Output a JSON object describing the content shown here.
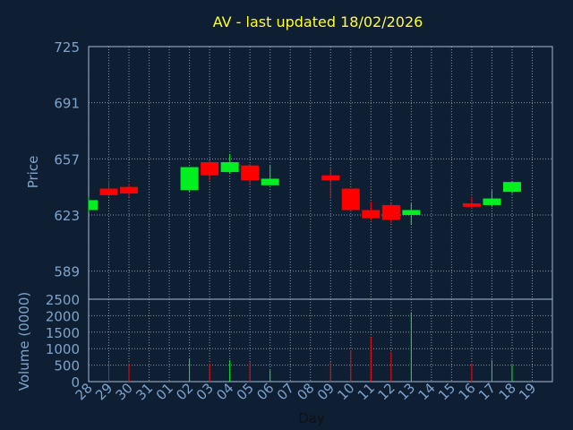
{
  "colors": {
    "background": "#0e1f33",
    "panel": "#0e1f33",
    "axis_text": "#7fa3cc",
    "title": "#ffff33",
    "up": "#00ee22",
    "down": "#ff0000",
    "grid": "#c8c8c8"
  },
  "chart_data": {
    "type": "candlestick",
    "title": "AV - last updated 18/02/2026",
    "xlabel": "Day",
    "ylabel_price": "Price",
    "ylabel_volume": "Volume (0000)",
    "price_ylim": [
      572,
      725
    ],
    "price_ticks": [
      "725",
      "691",
      "657",
      "623",
      "589"
    ],
    "volume_ylim": [
      0,
      2500
    ],
    "volume_ticks": [
      "2500",
      "2000",
      "1500",
      "1000",
      "500",
      "0"
    ],
    "x_ticks": [
      "28",
      "29",
      "30",
      "31",
      "01",
      "02",
      "03",
      "04",
      "05",
      "06",
      "07",
      "08",
      "09",
      "10",
      "11",
      "12",
      "13",
      "14",
      "15",
      "16",
      "17",
      "18",
      "19"
    ],
    "grid": true,
    "candles": [
      {
        "day": "28",
        "open": 626,
        "high": 634,
        "low": 625,
        "close": 632,
        "volume": 0
      },
      {
        "day": "29",
        "open": 639,
        "high": 644,
        "low": 634,
        "close": 635,
        "volume": 600
      },
      {
        "day": "30",
        "open": 640,
        "high": 642,
        "low": 634,
        "close": 636,
        "volume": 550
      },
      {
        "day": "02",
        "open": 638,
        "high": 652,
        "low": 637,
        "close": 652,
        "volume": 700
      },
      {
        "day": "03",
        "open": 655,
        "high": 656,
        "low": 644,
        "close": 647,
        "volume": 550
      },
      {
        "day": "04",
        "open": 649,
        "high": 660,
        "low": 648,
        "close": 655,
        "volume": 650
      },
      {
        "day": "05",
        "open": 653,
        "high": 654,
        "low": 641,
        "close": 644,
        "volume": 600
      },
      {
        "day": "06",
        "open": 641,
        "high": 653,
        "low": 641,
        "close": 645,
        "volume": 350
      },
      {
        "day": "09",
        "open": 647,
        "high": 651,
        "low": 633,
        "close": 644,
        "volume": 600
      },
      {
        "day": "10",
        "open": 639,
        "high": 639,
        "low": 625,
        "close": 626,
        "volume": 950
      },
      {
        "day": "11",
        "open": 626,
        "high": 631,
        "low": 620,
        "close": 621,
        "volume": 1350
      },
      {
        "day": "12",
        "open": 629,
        "high": 630,
        "low": 618,
        "close": 620,
        "volume": 900
      },
      {
        "day": "13",
        "open": 623,
        "high": 630,
        "low": 617,
        "close": 626,
        "volume": 2100
      },
      {
        "day": "16",
        "open": 630,
        "high": 634,
        "low": 627,
        "close": 628,
        "volume": 550
      },
      {
        "day": "17",
        "open": 629,
        "high": 638,
        "low": 628,
        "close": 633,
        "volume": 650
      },
      {
        "day": "18",
        "open": 637,
        "high": 643,
        "low": 636,
        "close": 643,
        "volume": 500
      }
    ]
  }
}
